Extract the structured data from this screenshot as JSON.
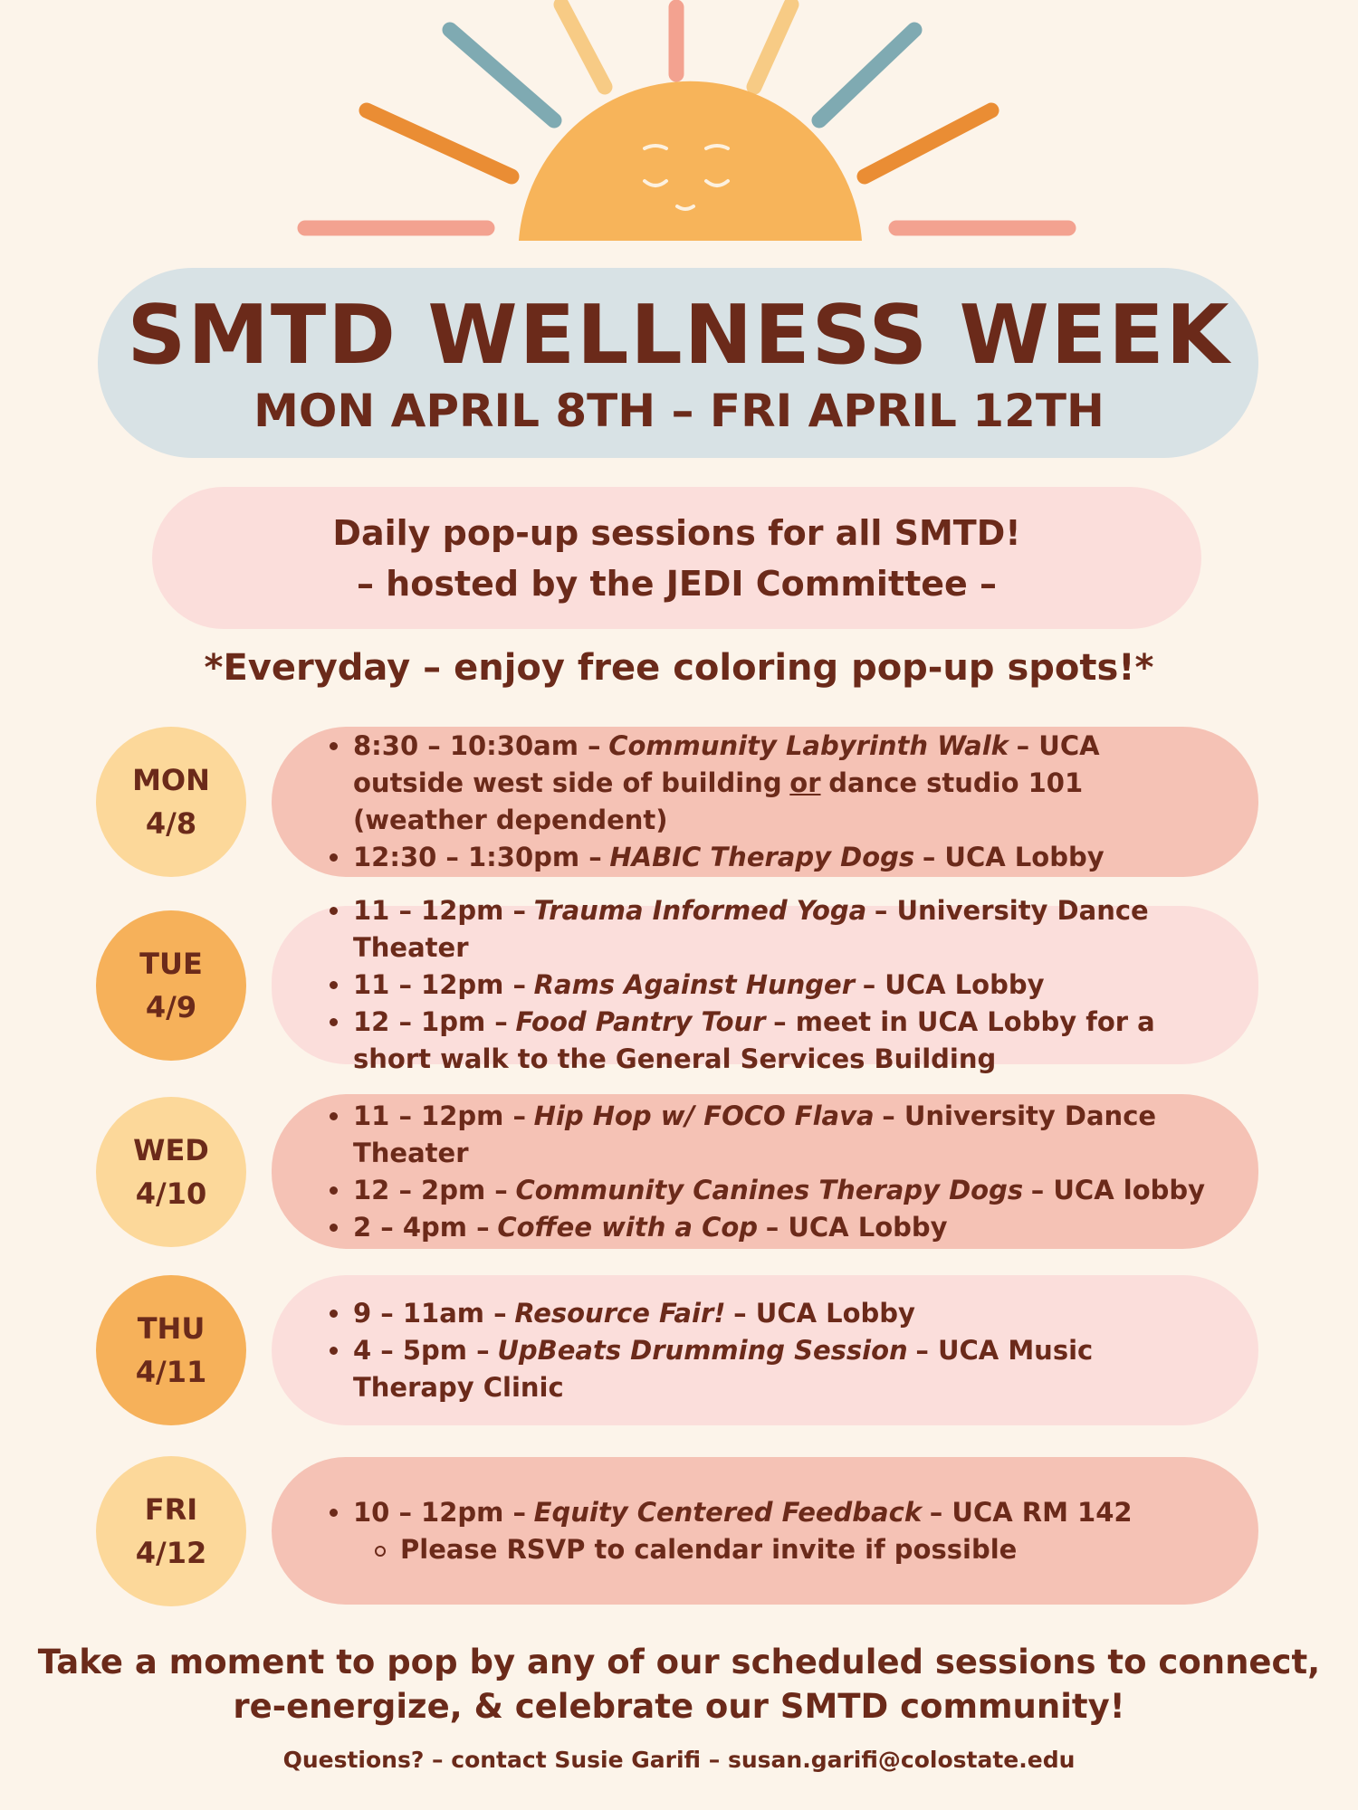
{
  "header": {
    "title": "SMTD WELLNESS WEEK",
    "dates": "MON APRIL 8TH – FRI APRIL 12TH"
  },
  "intro": {
    "lines": [
      "Daily pop-up sessions for all SMTD!",
      "– hosted by the JEDI Committee –"
    ]
  },
  "everyday": "*Everyday – enjoy free coloring pop-up spots!*",
  "days": [
    {
      "day": "MON",
      "date": "4/8",
      "items": [
        {
          "segments": [
            {
              "text": "8:30 – 10:30am –"
            },
            {
              "text": "Community Labyrinth Walk",
              "style": "italic"
            },
            {
              "text": "– UCA outside west side of building"
            },
            {
              "text": "or",
              "style": "underline"
            },
            {
              "text": "dance studio 101 (weather dependent)"
            }
          ]
        },
        {
          "segments": [
            {
              "text": "12:30 – 1:30pm –"
            },
            {
              "text": "HABIC Therapy Dogs",
              "style": "italic"
            },
            {
              "text": "– UCA Lobby"
            }
          ]
        }
      ]
    },
    {
      "day": "TUE",
      "date": "4/9",
      "items": [
        {
          "segments": [
            {
              "text": "11 – 12pm –"
            },
            {
              "text": "Trauma Informed Yoga",
              "style": "italic"
            },
            {
              "text": "– University Dance Theater"
            }
          ]
        },
        {
          "segments": [
            {
              "text": "11 – 12pm –"
            },
            {
              "text": "Rams Against Hunger",
              "style": "italic"
            },
            {
              "text": "– UCA Lobby"
            }
          ]
        },
        {
          "segments": [
            {
              "text": "12 – 1pm –"
            },
            {
              "text": "Food Pantry Tour",
              "style": "italic"
            },
            {
              "text": "– meet in UCA Lobby for a short walk to the General Services Building"
            }
          ]
        }
      ]
    },
    {
      "day": "WED",
      "date": "4/10",
      "items": [
        {
          "segments": [
            {
              "text": "11 – 12pm –"
            },
            {
              "text": "Hip Hop w/ FOCO Flava",
              "style": "italic"
            },
            {
              "text": "– University Dance Theater"
            }
          ]
        },
        {
          "segments": [
            {
              "text": "12 – 2pm –"
            },
            {
              "text": "Community Canines Therapy Dogs",
              "style": "italic"
            },
            {
              "text": "– UCA lobby"
            }
          ]
        },
        {
          "segments": [
            {
              "text": "2 – 4pm –"
            },
            {
              "text": "Coffee with a Cop",
              "style": "italic"
            },
            {
              "text": "– UCA Lobby"
            }
          ]
        }
      ]
    },
    {
      "day": "THU",
      "date": "4/11",
      "items": [
        {
          "segments": [
            {
              "text": "9 – 11am –"
            },
            {
              "text": "Resource Fair!",
              "style": "italic"
            },
            {
              "text": "– UCA Lobby"
            }
          ]
        },
        {
          "segments": [
            {
              "text": "4 – 5pm –"
            },
            {
              "text": "UpBeats Drumming Session",
              "style": "italic"
            },
            {
              "text": "– UCA Music Therapy Clinic"
            }
          ]
        }
      ]
    },
    {
      "day": "FRI",
      "date": "4/12",
      "items": [
        {
          "segments": [
            {
              "text": "10 – 12pm –"
            },
            {
              "text": "Equity Centered Feedback",
              "style": "italic"
            },
            {
              "text": "– UCA RM 142"
            }
          ],
          "subitems": [
            {
              "segments": [
                {
                  "text": "Please RSVP to calendar invite if possible"
                }
              ]
            }
          ]
        }
      ]
    }
  ],
  "footer": {
    "lines": [
      "Take a moment to pop by any of our scheduled sessions to connect,",
      "re-energize, & celebrate our SMTD community!"
    ],
    "contact": "Questions? – contact Susie Garifi – susan.garifi@colostate.edu"
  }
}
